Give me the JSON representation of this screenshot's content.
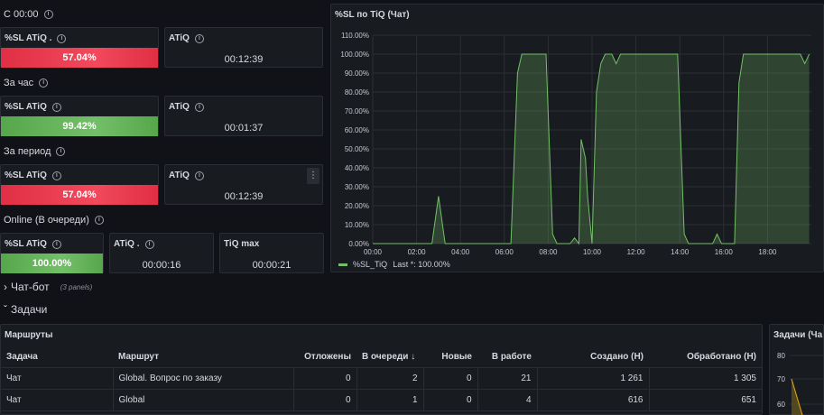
{
  "sections": {
    "since_midnight": "С 00:00",
    "last_hour": "За час",
    "period": "За период",
    "online": "Online (В очереди)"
  },
  "stats": {
    "row1": {
      "sl_label": "%SL ATiQ .",
      "sl_value": "57.04%",
      "atiq_label": "ATiQ",
      "atiq_value": "00:12:39"
    },
    "row2": {
      "sl_label": "%SL ATiQ",
      "sl_value": "99.42%",
      "atiq_label": "ATiQ",
      "atiq_value": "00:01:37"
    },
    "row3": {
      "sl_label": "%SL ATiQ",
      "sl_value": "57.04%",
      "atiq_label": "ATiQ",
      "atiq_value": "00:12:39"
    },
    "row4": {
      "sl_label": "%SL ATiQ",
      "sl_value": "100.00%",
      "atiq_label": "ATiQ .",
      "atiq_value": "00:00:16",
      "tiq_label": "TiQ max",
      "tiq_value": "00:00:21"
    }
  },
  "colors": {
    "red": "#f2495c",
    "green": "#73bf69",
    "series": "#73bf69"
  },
  "chart": {
    "title": "%SL по TiQ (Чат)",
    "legend_name": "%SL_TiQ",
    "legend_last": "Last *: 100.00%"
  },
  "chart_data": {
    "type": "area",
    "xlabel": "",
    "ylabel": "",
    "ylim": [
      0,
      110
    ],
    "x_ticks": [
      "00:00",
      "02:00",
      "04:00",
      "06:00",
      "08:00",
      "10:00",
      "12:00",
      "14:00",
      "16:00",
      "18:00"
    ],
    "y_ticks": [
      "0.00%",
      "10.00%",
      "20.00%",
      "30.00%",
      "40.00%",
      "50.00%",
      "60.00%",
      "70.00%",
      "80.00%",
      "90.00%",
      "100.00%",
      "110.00%"
    ],
    "grid": true,
    "legend": "bottom-left",
    "series": [
      {
        "name": "%SL_TiQ",
        "points": [
          [
            0,
            0
          ],
          [
            2.7,
            0
          ],
          [
            3.0,
            25
          ],
          [
            3.3,
            0
          ],
          [
            6.3,
            0
          ],
          [
            6.6,
            90
          ],
          [
            6.8,
            100
          ],
          [
            7.9,
            100
          ],
          [
            8.2,
            5
          ],
          [
            8.4,
            0
          ],
          [
            9.0,
            0
          ],
          [
            9.2,
            3
          ],
          [
            9.4,
            0
          ],
          [
            9.5,
            55
          ],
          [
            9.7,
            45
          ],
          [
            9.8,
            25
          ],
          [
            10.0,
            0
          ],
          [
            10.2,
            80
          ],
          [
            10.4,
            95
          ],
          [
            10.6,
            100
          ],
          [
            10.9,
            100
          ],
          [
            11.1,
            95
          ],
          [
            11.3,
            100
          ],
          [
            13.9,
            100
          ],
          [
            14.2,
            5
          ],
          [
            14.4,
            0
          ],
          [
            15.5,
            0
          ],
          [
            15.7,
            5
          ],
          [
            15.9,
            0
          ],
          [
            16.5,
            0
          ],
          [
            16.7,
            85
          ],
          [
            16.9,
            100
          ],
          [
            17.5,
            100
          ],
          [
            19.5,
            100
          ],
          [
            19.7,
            95
          ],
          [
            19.9,
            100
          ]
        ]
      }
    ]
  },
  "rows": {
    "chatbot": "Чат-бот",
    "chatbot_note": "(3 panels)",
    "tasks": "Задачи"
  },
  "routes_table": {
    "title": "Маршруты",
    "headers": [
      "Задача",
      "Маршрут",
      "Отложены",
      "В очереди",
      "Новые",
      "В работе",
      "Создано (Н)",
      "Обработано (Н)"
    ],
    "sort_indicator": "↓",
    "rows": [
      [
        "Чат",
        "Global. Вопрос по заказу",
        "0",
        "2",
        "0",
        "21",
        "1 261",
        "1 305"
      ],
      [
        "Чат",
        "Global",
        "0",
        "1",
        "0",
        "4",
        "616",
        "651"
      ]
    ]
  },
  "tasks_chart": {
    "title": "Задачи (Ча",
    "y_ticks": [
      "80",
      "70",
      "60"
    ]
  }
}
